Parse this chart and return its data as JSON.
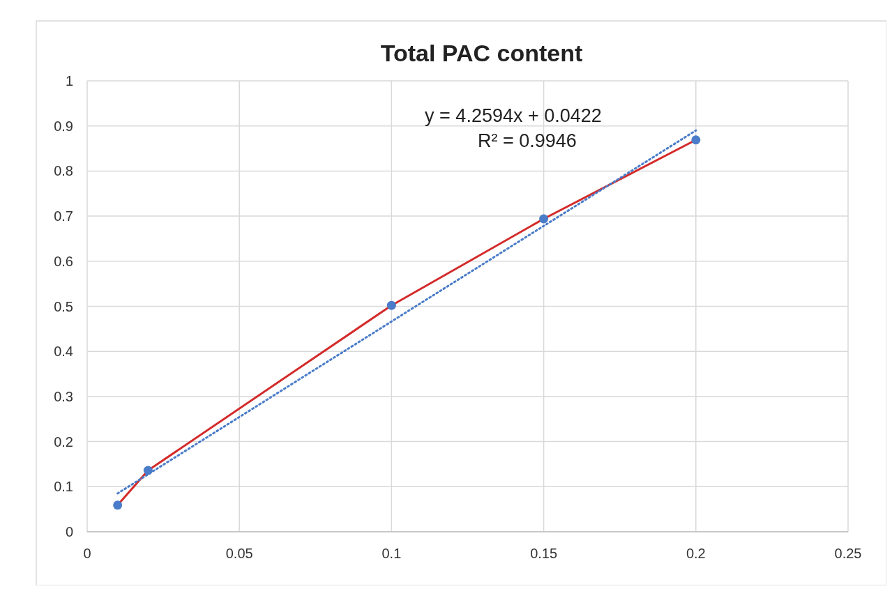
{
  "chart_data": {
    "type": "line",
    "title": "Total PAC content",
    "x": [
      0.01,
      0.02,
      0.1,
      0.15,
      0.2
    ],
    "series": [
      {
        "color": "#d42a2a",
        "values": [
          0.059,
          0.136,
          0.502,
          0.694,
          0.869
        ],
        "marker": "none",
        "line_style": "solid"
      },
      {
        "type": "scatter",
        "color": "#4a7cc9",
        "values": [
          0.059,
          0.136,
          0.502,
          0.694,
          0.869
        ],
        "marker": "circle"
      },
      {
        "color": "#4a7cc9",
        "x": [
          0.01,
          0.2
        ],
        "values": [
          0.085,
          0.89
        ],
        "marker": "none",
        "line_style": "dotted"
      }
    ],
    "annotations": [
      "y = 4.2594x + 0.0422",
      "R² = 0.9946"
    ],
    "xlim": [
      0,
      0.25
    ],
    "xticks": [
      0,
      0.05,
      0.1,
      0.15,
      0.2,
      0.25
    ],
    "ylim": [
      0,
      1
    ],
    "yticks": [
      0,
      0.1,
      0.2,
      0.3,
      0.4,
      0.5,
      0.6,
      0.7,
      0.8,
      0.9,
      1
    ],
    "grid": true
  }
}
